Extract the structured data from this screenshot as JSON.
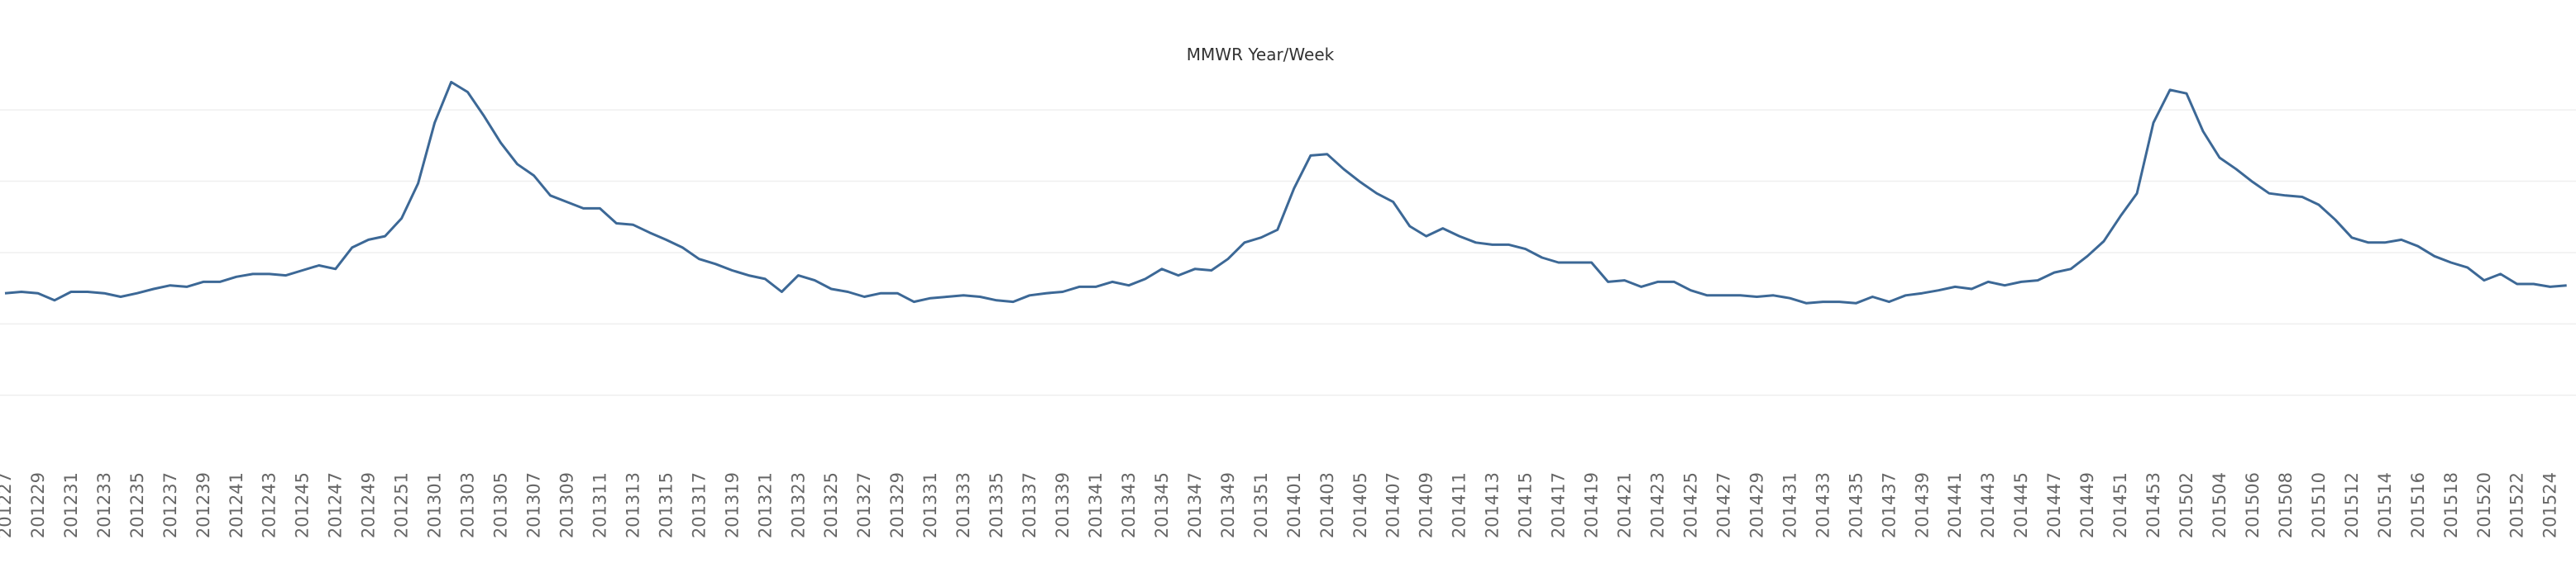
{
  "chart_data": {
    "type": "line",
    "title": "MMWR Year/Week",
    "color": "#3c6896",
    "grid": true,
    "ylim": [
      -0.5,
      4.5
    ],
    "yticks": [
      0,
      1,
      2,
      3,
      4
    ],
    "categories": [
      "201227",
      null,
      "201229",
      null,
      "201231",
      null,
      "201233",
      null,
      "201235",
      null,
      "201237",
      null,
      "201239",
      null,
      "201241",
      null,
      "201243",
      null,
      "201245",
      null,
      "201247",
      null,
      "201249",
      null,
      "201251",
      null,
      "201301",
      null,
      "201303",
      null,
      "201305",
      null,
      "201307",
      null,
      "201309",
      null,
      "201311",
      null,
      "201313",
      null,
      "201315",
      null,
      "201317",
      null,
      "201319",
      null,
      "201321",
      null,
      "201323",
      null,
      "201325",
      null,
      "201327",
      null,
      "201329",
      null,
      "201331",
      null,
      "201333",
      null,
      "201335",
      null,
      "201337",
      null,
      "201339",
      null,
      "201341",
      null,
      "201343",
      null,
      "201345",
      null,
      "201347",
      null,
      "201349",
      null,
      "201351",
      null,
      "201401",
      null,
      "201403",
      null,
      "201405",
      null,
      "201407",
      null,
      "201409",
      null,
      "201411",
      null,
      "201413",
      null,
      "201415",
      null,
      "201417",
      null,
      "201419",
      null,
      "201421",
      null,
      "201423",
      null,
      "201425",
      null,
      "201427",
      null,
      "201429",
      null,
      "201431",
      null,
      "201433",
      null,
      "201435",
      null,
      "201437",
      null,
      "201439",
      null,
      "201441",
      null,
      "201443",
      null,
      "201445",
      null,
      "201447",
      null,
      "201449",
      null,
      "201451",
      null,
      "201453",
      null,
      "201502",
      null,
      "201504",
      null,
      "201506",
      null,
      "201508",
      null,
      "201510",
      null,
      "201512",
      null,
      "201514",
      null,
      "201516",
      null,
      "201518",
      null,
      "201520",
      null,
      "201522",
      null,
      "201524",
      null
    ],
    "values": [
      1.43,
      1.45,
      1.43,
      1.33,
      1.45,
      1.45,
      1.43,
      1.38,
      1.43,
      1.49,
      1.54,
      1.52,
      1.59,
      1.59,
      1.66,
      1.7,
      1.7,
      1.68,
      1.75,
      1.82,
      1.77,
      2.07,
      2.18,
      2.23,
      2.48,
      2.97,
      3.82,
      4.39,
      4.25,
      3.91,
      3.54,
      3.24,
      3.08,
      2.8,
      2.71,
      2.62,
      2.62,
      2.41,
      2.39,
      2.28,
      2.18,
      2.07,
      1.91,
      1.84,
      1.75,
      1.68,
      1.63,
      1.45,
      1.68,
      1.61,
      1.49,
      1.45,
      1.38,
      1.43,
      1.43,
      1.31,
      1.36,
      1.38,
      1.4,
      1.38,
      1.33,
      1.31,
      1.4,
      1.43,
      1.45,
      1.52,
      1.52,
      1.59,
      1.54,
      1.63,
      1.77,
      1.68,
      1.77,
      1.75,
      1.91,
      2.14,
      2.21,
      2.32,
      2.9,
      3.36,
      3.38,
      3.17,
      2.99,
      2.83,
      2.71,
      2.37,
      2.23,
      2.34,
      2.23,
      2.14,
      2.11,
      2.11,
      2.05,
      1.93,
      1.86,
      1.86,
      1.86,
      1.59,
      1.61,
      1.52,
      1.59,
      1.59,
      1.47,
      1.4,
      1.4,
      1.4,
      1.38,
      1.4,
      1.36,
      1.29,
      1.31,
      1.31,
      1.29,
      1.38,
      1.31,
      1.4,
      1.43,
      1.47,
      1.52,
      1.49,
      1.59,
      1.54,
      1.59,
      1.61,
      1.72,
      1.77,
      1.95,
      2.16,
      2.51,
      2.83,
      3.82,
      4.28,
      4.23,
      3.7,
      3.33,
      3.17,
      2.99,
      2.83,
      2.8,
      2.78,
      2.67,
      2.46,
      2.21,
      2.14,
      2.14,
      2.18,
      2.09,
      1.95,
      1.86,
      1.79,
      1.61,
      1.7,
      1.56,
      1.56,
      1.52,
      1.54
    ]
  }
}
